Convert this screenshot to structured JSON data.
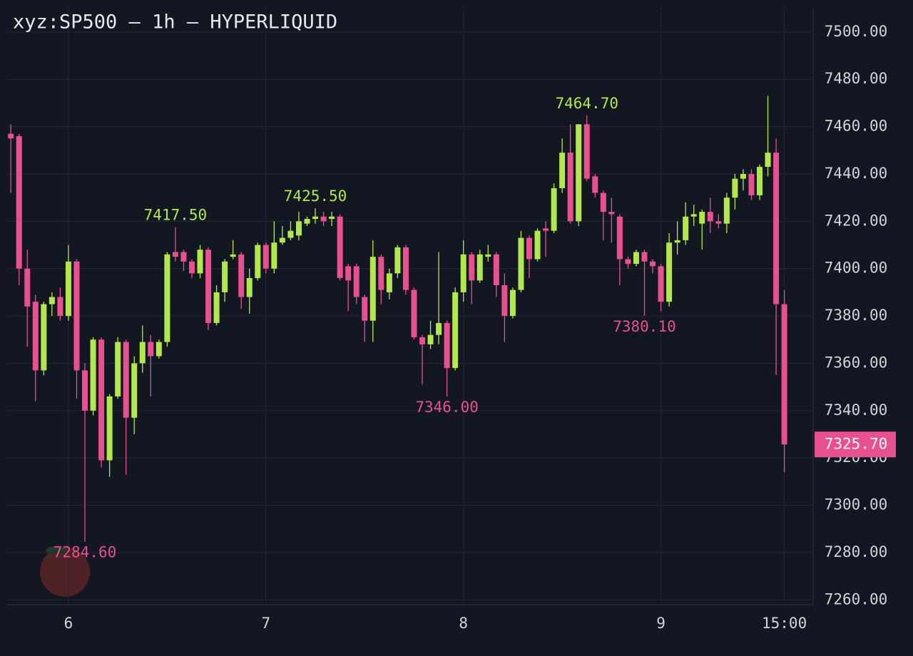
{
  "chart_data": {
    "type": "candlestick",
    "title": "xyz:SP500 — 1h — HYPERLIQUID",
    "up_color": "#b2e84d",
    "down_color": "#e8508f",
    "grid": true,
    "x": [
      -7,
      -6,
      -5,
      -4,
      -3,
      -2,
      -1,
      0,
      1,
      2,
      3,
      4,
      5,
      6,
      7,
      8,
      9,
      10,
      11,
      12,
      13,
      14,
      15,
      16,
      17,
      18,
      19,
      20,
      21,
      22,
      23,
      24,
      25,
      26,
      27,
      28,
      29,
      30,
      31,
      32,
      33,
      34,
      35,
      36,
      37,
      38,
      39,
      40,
      41,
      42,
      43,
      44,
      45,
      46,
      47,
      48,
      49,
      50,
      51,
      52,
      53,
      54,
      55,
      56,
      57,
      58,
      59,
      60,
      61,
      62,
      63,
      64,
      65,
      66,
      67,
      68,
      69,
      70,
      71,
      72,
      73,
      74,
      75,
      76,
      77,
      78,
      79,
      80,
      81,
      82,
      83,
      84,
      85,
      86,
      87
    ],
    "open": [
      7457,
      7456,
      7400,
      7386,
      7357,
      7385,
      7388,
      7380,
      7403,
      7357,
      7340,
      7370,
      7319,
      7346,
      7369,
      7337,
      7360,
      7369,
      7363,
      7369,
      7407,
      7407,
      7403,
      7398,
      7408,
      7377,
      7390,
      7405,
      7406,
      7388,
      7396,
      7410,
      7400,
      7411,
      7413,
      7414,
      7419,
      7421,
      7422,
      7421,
      7422,
      7401,
      7401,
      7388,
      7378,
      7405,
      7390,
      7398,
      7409,
      7391,
      7371,
      7368,
      7372,
      7377,
      7358,
      7390,
      7406,
      7395,
      7405,
      7406,
      7393,
      7380,
      7391,
      7413,
      7404,
      7417,
      7416,
      7434,
      7449,
      7420,
      7461,
      7439,
      7432,
      7424,
      7422,
      7404,
      7402,
      7407,
      7403,
      7401,
      7386,
      7411,
      7412,
      7422,
      7419,
      7424,
      7420,
      7419,
      7430,
      7438,
      7440,
      7431,
      7443,
      7449,
      7385
    ],
    "high": [
      7461,
      7457,
      7408,
      7389,
      7386,
      7390,
      7392,
      7410,
      7404,
      7360,
      7371,
      7371,
      7347,
      7371,
      7370,
      7363,
      7376,
      7372,
      7370,
      7407,
      7417.5,
      7408,
      7404,
      7410,
      7409,
      7393,
      7404,
      7412,
      7407,
      7400,
      7411,
      7411,
      7420,
      7418,
      7420,
      7424,
      7422,
      7425.5,
      7424,
      7424,
      7423,
      7402,
      7402,
      7389,
      7412,
      7406,
      7400,
      7410,
      7410,
      7392,
      7372,
      7378,
      7407,
      7378,
      7392,
      7412,
      7407,
      7408,
      7410,
      7407,
      7398,
      7392,
      7416,
      7414,
      7417,
      7420,
      7436,
      7455,
      7461,
      7461,
      7464.7,
      7440,
      7433,
      7430,
      7423,
      7405,
      7408,
      7408,
      7404,
      7402,
      7415,
      7420,
      7428,
      7427,
      7425,
      7430,
      7423,
      7432,
      7440,
      7442,
      7442,
      7444,
      7473,
      7455,
      7391
    ],
    "low": [
      7432,
      7393,
      7367,
      7344,
      7355,
      7380,
      7378,
      7378,
      7345,
      7284.6,
      7338,
      7316,
      7312,
      7345,
      7313,
      7330,
      7356,
      7346,
      7362,
      7367,
      7403,
      7399,
      7396,
      7396,
      7374,
      7376,
      7386,
      7404,
      7383,
      7381,
      7395,
      7398,
      7398,
      7410,
      7412,
      7412,
      7418,
      7419,
      7418,
      7418,
      7395,
      7382,
      7385,
      7369,
      7369,
      7385,
      7387,
      7396,
      7389,
      7370,
      7351,
      7366,
      7368,
      7346,
      7357,
      7386,
      7385,
      7394,
      7403,
      7388,
      7369,
      7379,
      7390,
      7396,
      7403,
      7405,
      7415,
      7432,
      7419,
      7418,
      7437,
      7430,
      7412,
      7411,
      7393,
      7400,
      7401,
      7380.1,
      7398,
      7382,
      7384,
      7406,
      7410,
      7418,
      7408,
      7415,
      7417,
      7415,
      7425,
      7433,
      7429,
      7429,
      7439,
      7355,
      7314
    ],
    "close": [
      7455,
      7400,
      7384,
      7357,
      7385,
      7388,
      7380,
      7403,
      7357,
      7340,
      7370,
      7319,
      7346,
      7369,
      7337,
      7360,
      7369,
      7363,
      7369,
      7406,
      7405,
      7403,
      7398,
      7408,
      7377,
      7390,
      7403,
      7406,
      7388,
      7396,
      7410,
      7400,
      7411,
      7413,
      7416,
      7420,
      7421,
      7422,
      7420,
      7422,
      7396,
      7395,
      7388,
      7378,
      7405,
      7391,
      7398,
      7409,
      7391,
      7371,
      7368,
      7372,
      7377,
      7358,
      7390,
      7406,
      7395,
      7406,
      7406,
      7393,
      7380,
      7391,
      7413,
      7404,
      7416,
      7416,
      7434,
      7449,
      7420,
      7461,
      7438,
      7432,
      7424,
      7423,
      7404,
      7402,
      7407,
      7403,
      7401,
      7386,
      7411,
      7412,
      7422,
      7423,
      7424,
      7420,
      7419,
      7430,
      7438,
      7440,
      7431,
      7443,
      7449,
      7385,
      7325.7
    ],
    "xlim": [
      -7.45,
      90.5
    ],
    "xticks": [
      {
        "value": 0,
        "label": "6"
      },
      {
        "value": 24,
        "label": "7"
      },
      {
        "value": 48,
        "label": "8"
      },
      {
        "value": 72,
        "label": "9"
      },
      {
        "value": 87,
        "label": "15:00"
      }
    ],
    "ylim": [
      7258,
      7510.5
    ],
    "yticks": [
      {
        "value": 7260,
        "label": "7260.00"
      },
      {
        "value": 7280,
        "label": "7280.00"
      },
      {
        "value": 7300,
        "label": "7300.00"
      },
      {
        "value": 7320,
        "label": "7320.00"
      },
      {
        "value": 7340,
        "label": "7340.00"
      },
      {
        "value": 7360,
        "label": "7360.00"
      },
      {
        "value": 7380,
        "label": "7380.00"
      },
      {
        "value": 7400,
        "label": "7400.00"
      },
      {
        "value": 7420,
        "label": "7420.00"
      },
      {
        "value": 7440,
        "label": "7440.00"
      },
      {
        "value": 7460,
        "label": "7460.00"
      },
      {
        "value": 7480,
        "label": "7480.00"
      },
      {
        "value": 7500,
        "label": "7500.00"
      }
    ],
    "annotations": [
      {
        "x": 2,
        "value": 7284.6,
        "label": "7284.60"
      },
      {
        "x": 13,
        "value": 7417.5,
        "label": "7417.50"
      },
      {
        "x": 30,
        "value": 7425.5,
        "label": "7425.50"
      },
      {
        "x": 46,
        "value": 7346,
        "label": "7346.00"
      },
      {
        "x": 63,
        "value": 7464.7,
        "label": "7464.70"
      },
      {
        "x": 70,
        "value": 7380.1,
        "label": "7380.10"
      }
    ],
    "last_price": {
      "value": 7325.7,
      "label": "7325.70"
    }
  }
}
